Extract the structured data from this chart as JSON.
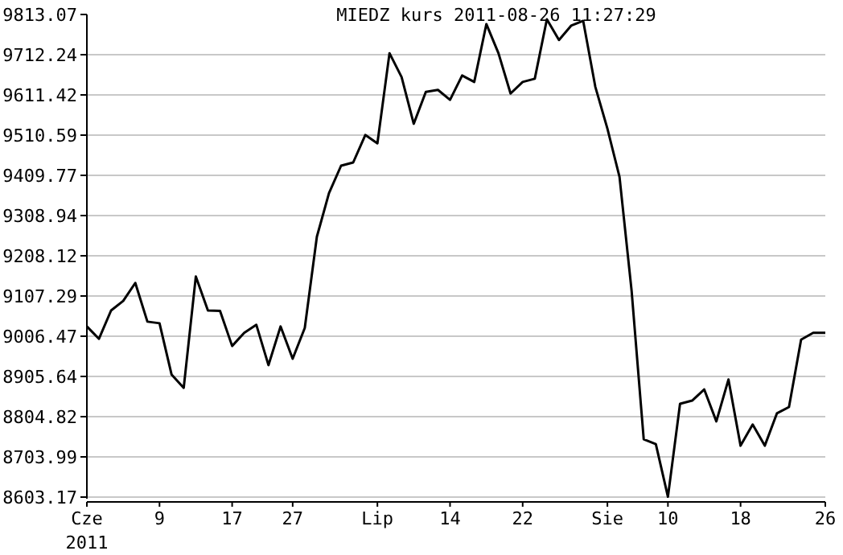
{
  "chart_data": {
    "type": "line",
    "title": "MIEDZ kurs  2011-08-26 11:27:29",
    "categories": [
      "Cze",
      null,
      null,
      null,
      null,
      null,
      "9",
      null,
      null,
      null,
      null,
      null,
      "17",
      null,
      null,
      null,
      null,
      "27",
      null,
      null,
      null,
      null,
      null,
      null,
      "Lip",
      null,
      null,
      null,
      null,
      null,
      "14",
      null,
      null,
      null,
      null,
      null,
      "22",
      null,
      null,
      null,
      null,
      null,
      null,
      "Sie",
      null,
      null,
      null,
      null,
      "10",
      null,
      null,
      null,
      null,
      null,
      "18",
      null,
      null,
      null,
      null,
      null,
      null,
      "26"
    ],
    "series": [
      {
        "color": "#000000",
        "values": [
          9031,
          9000,
          9071,
          9095,
          9140,
          9043,
          9039,
          8910,
          8877,
          9156,
          9071,
          9070,
          8982,
          9015,
          9035,
          8934,
          9031,
          8950,
          9027,
          9256,
          9365,
          9434,
          9442,
          9511,
          9490,
          9716,
          9656,
          9539,
          9619,
          9624,
          9599,
          9660,
          9644,
          9789,
          9716,
          9615,
          9644,
          9652,
          9801,
          9749,
          9785,
          9797,
          9632,
          9527,
          9406,
          9120,
          8748,
          8736,
          8604,
          8837,
          8845,
          8873,
          8793,
          8898,
          8732,
          8785,
          8732,
          8813,
          8829,
          8998,
          9015,
          9015
        ]
      }
    ],
    "annotations": [
      "2011"
    ],
    "ylim": [
      8603.17,
      9813.07
    ],
    "yticks": [
      8603.17,
      8703.99,
      8804.82,
      8905.64,
      9006.47,
      9107.29,
      9208.12,
      9308.94,
      9409.77,
      9510.59,
      9611.42,
      9712.24,
      9813.07
    ],
    "grid": "y",
    "marker": "none",
    "line_style": "solid"
  }
}
